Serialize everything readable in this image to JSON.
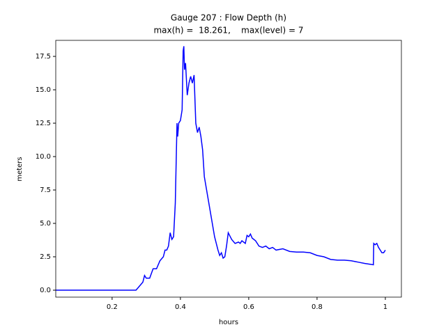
{
  "chart_data": {
    "type": "line",
    "title": "Gauge 207 : Flow Depth (h)",
    "subtitle": "max(h) =  18.261,    max(level) = 7",
    "x_label": "hours",
    "y_label": "meters",
    "x": [
      0.035,
      0.27,
      0.28,
      0.29,
      0.295,
      0.3,
      0.31,
      0.32,
      0.33,
      0.34,
      0.35,
      0.355,
      0.36,
      0.365,
      0.37,
      0.375,
      0.38,
      0.385,
      0.39,
      0.392,
      0.395,
      0.4,
      0.405,
      0.408,
      0.41,
      0.412,
      0.415,
      0.42,
      0.425,
      0.43,
      0.435,
      0.44,
      0.445,
      0.45,
      0.455,
      0.46,
      0.465,
      0.47,
      0.48,
      0.49,
      0.5,
      0.51,
      0.515,
      0.52,
      0.525,
      0.53,
      0.535,
      0.54,
      0.55,
      0.56,
      0.57,
      0.575,
      0.58,
      0.59,
      0.595,
      0.6,
      0.605,
      0.61,
      0.62,
      0.63,
      0.64,
      0.65,
      0.66,
      0.67,
      0.68,
      0.7,
      0.72,
      0.74,
      0.76,
      0.78,
      0.8,
      0.82,
      0.84,
      0.86,
      0.88,
      0.9,
      0.92,
      0.94,
      0.965,
      0.966,
      0.97,
      0.975,
      0.98,
      0.99,
      0.995,
      1.0
    ],
    "series": [
      {
        "color": "#0000ff",
        "values": [
          0,
          0,
          0.3,
          0.6,
          1.1,
          0.9,
          0.9,
          1.6,
          1.6,
          2.2,
          2.5,
          3.0,
          3.0,
          3.3,
          4.3,
          3.8,
          4.0,
          6.5,
          12.5,
          11.5,
          12.5,
          12.7,
          13.5,
          17.9,
          18.261,
          16.5,
          17.0,
          14.6,
          15.5,
          16.0,
          15.5,
          16.1,
          12.5,
          11.8,
          12.2,
          11.5,
          10.5,
          8.5,
          7.0,
          5.5,
          4.0,
          3.0,
          2.6,
          2.8,
          2.4,
          2.5,
          3.3,
          4.3,
          3.8,
          3.5,
          3.6,
          3.5,
          3.7,
          3.5,
          4.1,
          4.0,
          4.2,
          3.9,
          3.7,
          3.3,
          3.2,
          3.3,
          3.1,
          3.2,
          3.0,
          3.1,
          2.9,
          2.85,
          2.85,
          2.8,
          2.6,
          2.5,
          2.3,
          2.25,
          2.25,
          2.2,
          2.1,
          2.0,
          1.9,
          3.5,
          3.4,
          3.5,
          3.2,
          2.8,
          2.8,
          3.0
        ]
      }
    ],
    "xlim": [
      0.035,
      1.047
    ],
    "ylim": [
      -0.52,
      18.7
    ],
    "xticks": [
      0.2,
      0.4,
      0.6,
      0.8,
      1.0
    ],
    "yticks": [
      {
        "value": 0,
        "label": "0.0"
      },
      2.5,
      {
        "value": 5,
        "label": "5.0"
      },
      7.5,
      {
        "value": 10,
        "label": "10.0"
      },
      12.5,
      {
        "value": 15,
        "label": "15.0"
      },
      17.5
    ]
  }
}
